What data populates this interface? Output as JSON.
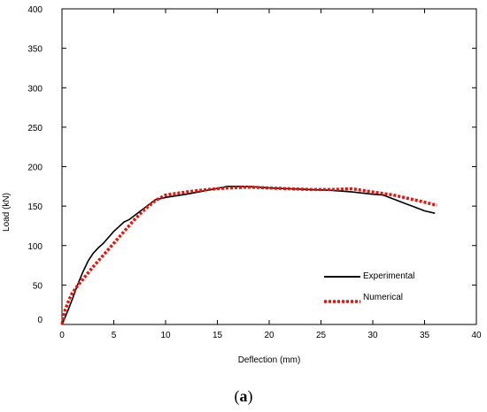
{
  "caption": {
    "open": "(",
    "letter": "a",
    "close": ")"
  },
  "chart_data": {
    "type": "line",
    "xlabel": "Deflection (mm)",
    "ylabel": "Load (kN)",
    "xlim": [
      0,
      40
    ],
    "ylim": [
      0,
      400
    ],
    "xticks": [
      0,
      5,
      10,
      15,
      20,
      25,
      30,
      35,
      40
    ],
    "yticks": [
      0,
      50,
      100,
      150,
      200,
      250,
      300,
      350,
      400
    ],
    "grid": false,
    "legend": "bottom-right",
    "series": [
      {
        "name": "Experimental",
        "color": "#000000",
        "style": "solid",
        "x": [
          0,
          0.5,
          1,
          1.5,
          2,
          2.5,
          3,
          3.5,
          4,
          5,
          6,
          6.5,
          7,
          8,
          9,
          10,
          12,
          14,
          16,
          18,
          20,
          22,
          24,
          26,
          28,
          30,
          31,
          32,
          33,
          34,
          35,
          36
        ],
        "y": [
          0,
          15,
          32,
          50,
          66,
          80,
          90,
          97,
          103,
          118,
          130,
          133,
          138,
          148,
          158,
          161,
          165,
          170,
          175,
          175,
          173,
          172,
          171,
          170,
          168,
          165,
          164,
          159,
          154,
          149,
          144,
          141
        ]
      },
      {
        "name": "Numerical",
        "color": "#e8140a",
        "style": "dotted",
        "x": [
          0,
          0.3,
          0.7,
          1,
          1.5,
          2,
          3,
          4,
          5,
          6,
          7,
          8,
          9,
          10,
          12,
          14,
          16,
          18,
          20,
          22,
          24,
          26,
          28,
          29,
          30,
          31,
          32,
          33,
          34,
          35,
          36.2
        ],
        "y": [
          0,
          18,
          32,
          40,
          49,
          57,
          73,
          88,
          103,
          118,
          133,
          146,
          157,
          164,
          168,
          171,
          173,
          174,
          173,
          172,
          171,
          171,
          172,
          170,
          168,
          166,
          164,
          161,
          158,
          155,
          151
        ]
      }
    ]
  }
}
